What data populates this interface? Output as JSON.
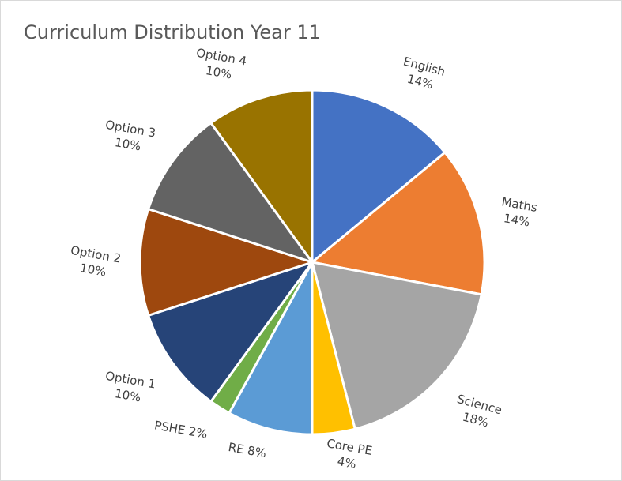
{
  "chart_data": {
    "type": "pie",
    "title": "Curriculum Distribution Year 11",
    "slices": [
      {
        "name": "English",
        "value": 14,
        "label": "14%",
        "color": "#4472C4"
      },
      {
        "name": "Maths",
        "value": 14,
        "label": "14%",
        "color": "#ED7D31"
      },
      {
        "name": "Science",
        "value": 18,
        "label": "18%",
        "color": "#A5A5A5"
      },
      {
        "name": "Core PE",
        "value": 4,
        "label": "4%",
        "color": "#FFC000"
      },
      {
        "name": "RE",
        "value": 8,
        "label": "8%",
        "color": "#5B9BD5"
      },
      {
        "name": "PSHE",
        "value": 2,
        "label": "2%",
        "color": "#70AD47"
      },
      {
        "name": "Option 1",
        "value": 10,
        "label": "10%",
        "color": "#264478"
      },
      {
        "name": "Option 2",
        "value": 10,
        "label": "10%",
        "color": "#9E480E"
      },
      {
        "name": "Option 3",
        "value": 10,
        "label": "10%",
        "color": "#636363"
      },
      {
        "name": "Option 4",
        "value": 10,
        "label": "10%",
        "color": "#997300"
      }
    ]
  }
}
